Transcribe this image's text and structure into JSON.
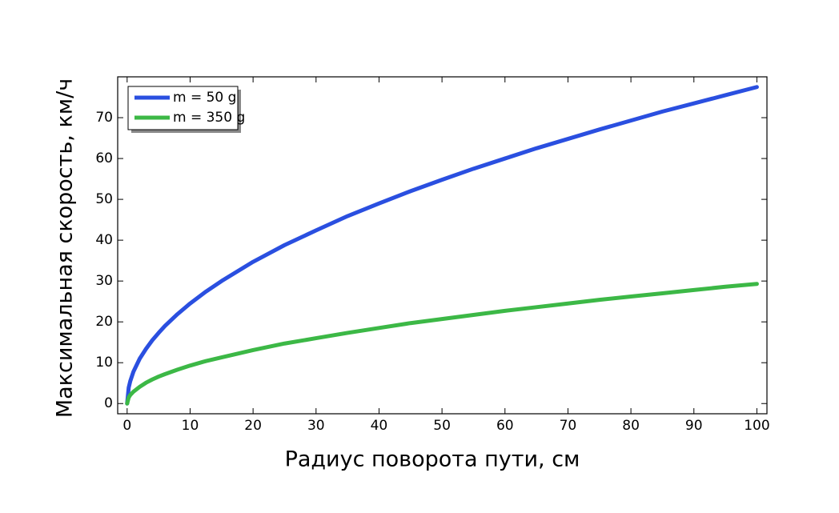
{
  "chart_data": {
    "type": "line",
    "x_label": "Радиус поворота пути, см",
    "y_label": "Максимальная скорость, км/ч",
    "x": [
      0,
      0.25,
      0.5,
      1,
      2,
      3,
      4,
      5,
      6,
      8,
      10,
      12.5,
      15,
      20,
      25,
      30,
      35,
      40,
      45,
      50,
      55,
      60,
      65,
      70,
      75,
      80,
      85,
      90,
      95,
      100
    ],
    "series": [
      {
        "name": "m = 50 g",
        "color": "#2a4fe0",
        "values": [
          0,
          3.9,
          5.5,
          7.8,
          11.0,
          13.4,
          15.5,
          17.3,
          19.0,
          21.9,
          24.5,
          27.4,
          30.0,
          34.7,
          38.8,
          42.4,
          45.9,
          49.0,
          52.0,
          54.8,
          57.5,
          60.0,
          62.5,
          64.8,
          67.1,
          69.3,
          71.5,
          73.5,
          75.5,
          77.5
        ]
      },
      {
        "name": "m = 350 g",
        "color": "#3cb846",
        "values": [
          0,
          1.5,
          2.1,
          2.9,
          4.1,
          5.1,
          5.9,
          6.6,
          7.2,
          8.3,
          9.3,
          10.4,
          11.3,
          13.1,
          14.7,
          16.0,
          17.3,
          18.5,
          19.7,
          20.7,
          21.7,
          22.7,
          23.6,
          24.5,
          25.4,
          26.2,
          27.0,
          27.8,
          28.6,
          29.3
        ]
      }
    ],
    "xlim": [
      -1.5,
      101.6
    ],
    "ylim": [
      -2.5,
      80
    ],
    "xticks": [
      0,
      10,
      20,
      30,
      40,
      50,
      60,
      70,
      80,
      90,
      100
    ],
    "yticks": [
      0,
      10,
      20,
      30,
      40,
      50,
      60,
      70
    ],
    "legend": "upper-left"
  }
}
